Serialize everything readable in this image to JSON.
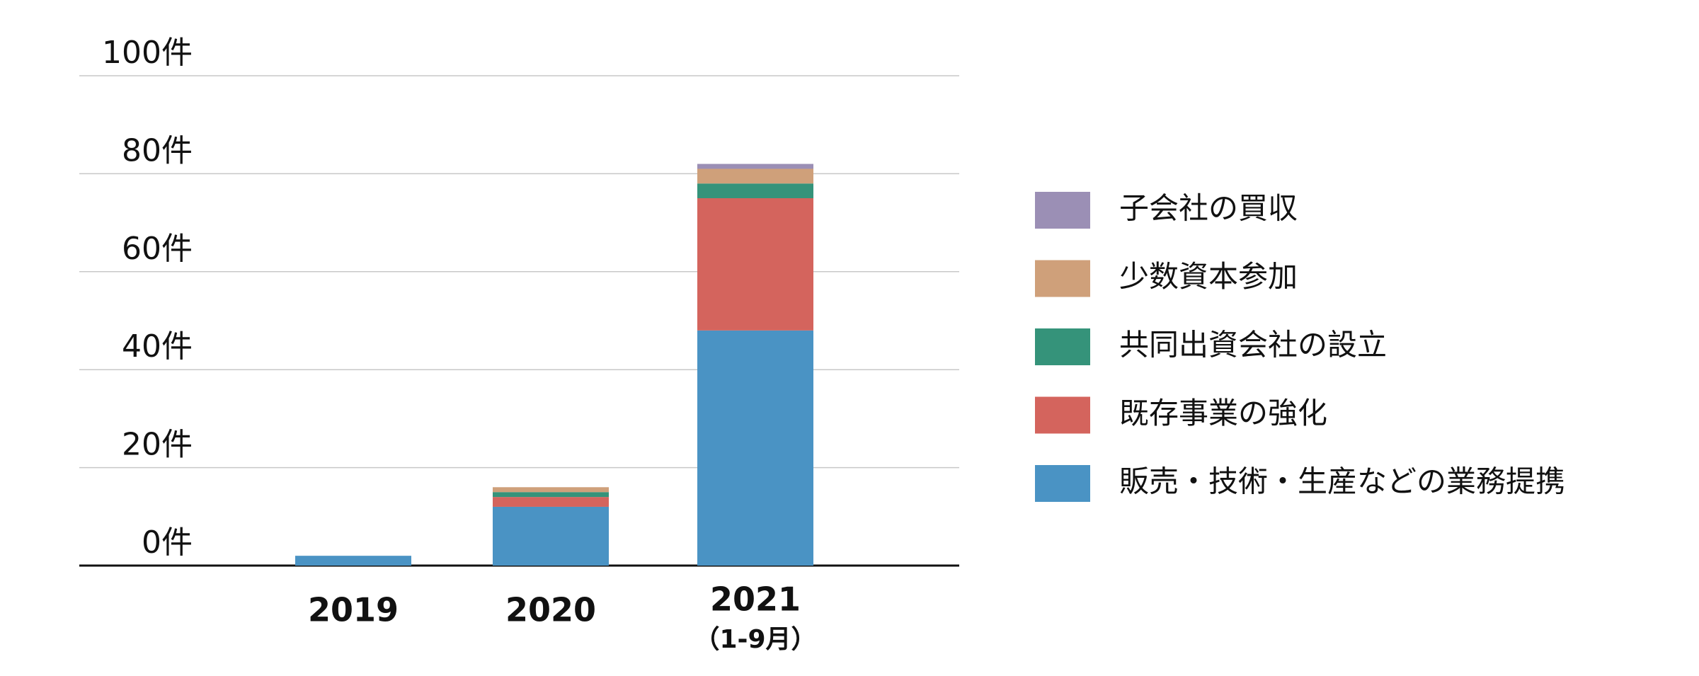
{
  "chart_data": {
    "type": "stacked_bar",
    "categories": [
      "2019",
      "2020",
      "2021"
    ],
    "category_notes": [
      null,
      null,
      "（1-9月）"
    ],
    "series": [
      {
        "name": "販売・技術・生産などの業務提携",
        "color": "#4a93c4",
        "values": [
          2,
          12,
          48
        ]
      },
      {
        "name": "既存事業の強化",
        "color": "#d4645d",
        "values": [
          0,
          2,
          27
        ]
      },
      {
        "name": "共同出資会社の設立",
        "color": "#35937a",
        "values": [
          0,
          1,
          3
        ]
      },
      {
        "name": "少数資本参加",
        "color": "#cfa07a",
        "values": [
          0,
          1,
          3
        ]
      },
      {
        "name": "子会社の買収",
        "color": "#9b8fb5",
        "values": [
          0,
          0,
          1
        ]
      }
    ],
    "ylim": [
      0,
      100
    ],
    "yticks": [
      {
        "value": 0,
        "label": "0件"
      },
      {
        "value": 20,
        "label": "20件"
      },
      {
        "value": 40,
        "label": "40件"
      },
      {
        "value": 60,
        "label": "60件"
      },
      {
        "value": 80,
        "label": "80件"
      },
      {
        "value": 100,
        "label": "100件"
      }
    ],
    "grid": true,
    "legend": "right"
  }
}
